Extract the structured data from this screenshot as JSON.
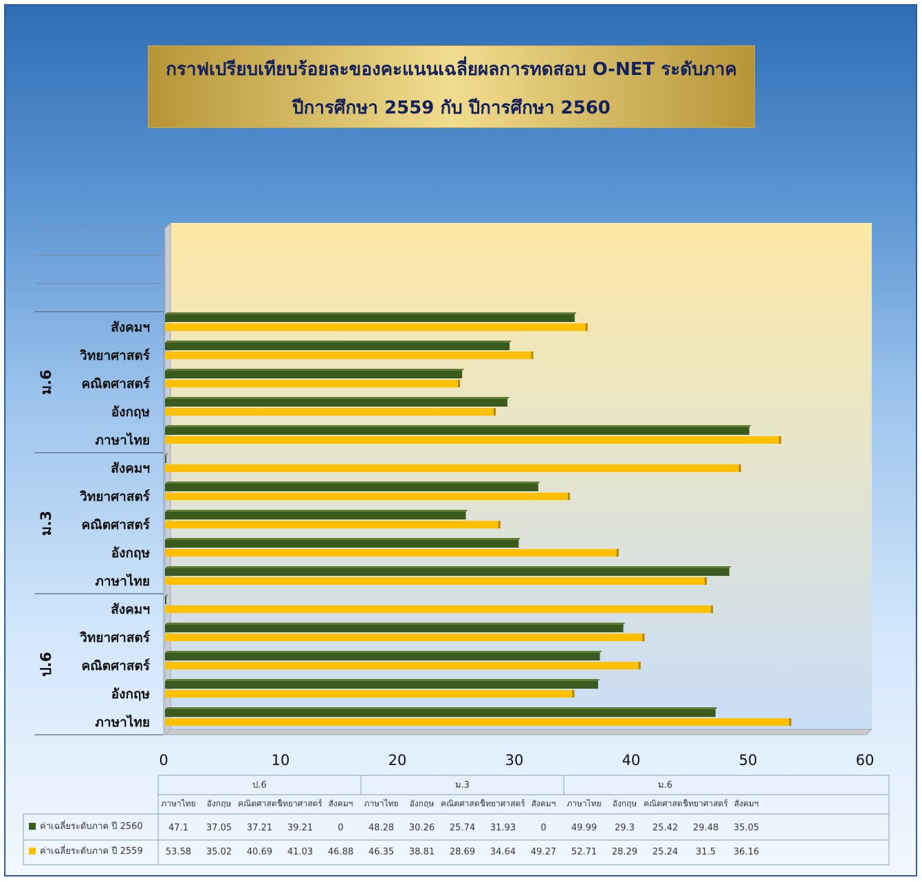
{
  "chart_data": {
    "type": "bar",
    "orientation": "horizontal",
    "title_line1": "กราฟเปรียบเทียบร้อยละของคะแนนเฉลี่ยผลการทดสอบ O-NET ระดับภาค",
    "title_line2": "ปีการศึกษา 2559 กับ ปีการศึกษา 2560",
    "groups": [
      "ป.6",
      "ม.3",
      "ม.6"
    ],
    "subjects": [
      "ภาษาไทย",
      "อังกฤษ",
      "คณิตศาสตร์",
      "วิทยาศาสตร์",
      "สังคมฯ"
    ],
    "series": [
      {
        "name": "ค่าเฉลี่ยระดับภาค  ปี 2560",
        "color": "#3b5a1e",
        "values": [
          47.1,
          37.05,
          37.21,
          39.21,
          0,
          48.28,
          30.26,
          25.74,
          31.93,
          0,
          49.99,
          29.3,
          25.42,
          29.48,
          35.05
        ]
      },
      {
        "name": "ค่าเฉลี่ยระดับภาค    ปี 2559",
        "color": "#ffc000",
        "values": [
          53.58,
          35.02,
          40.69,
          41.03,
          46.88,
          46.35,
          38.81,
          28.69,
          34.64,
          49.27,
          52.71,
          28.29,
          25.24,
          31.5,
          36.16
        ]
      }
    ],
    "xlim": [
      0,
      60
    ],
    "xticks": [
      0,
      10,
      20,
      30,
      40,
      50,
      60
    ],
    "grid": false,
    "data_table": true
  }
}
